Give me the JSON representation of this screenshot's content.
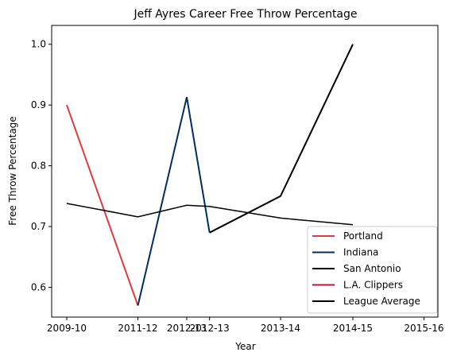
{
  "chart_data": {
    "type": "line",
    "title": "Jeff Ayres Career Free Throw Percentage",
    "xlabel": "Year",
    "ylabel": "Free Throw Percentage",
    "categories": [
      "2009-10",
      "2011-12",
      "2012-13",
      "2012-13",
      "2013-14",
      "2014-15",
      "2015-16"
    ],
    "x_tick_positions": [
      0,
      1,
      2,
      3,
      4,
      5,
      6
    ],
    "x_tick_values": [
      0,
      1.02,
      1.8,
      2.6,
      3.3,
      4.02,
      4.6
    ],
    "x_ticks": [
      "2009-10",
      "2011-12",
      "2012-13",
      "2012-13",
      "2013-14",
      "2014-15",
      "2015-16"
    ],
    "ylim": [
      0.551,
      1.031
    ],
    "yticks": [
      0.6,
      0.7,
      0.8,
      0.9,
      1.0
    ],
    "ytick_labels": [
      "0.6",
      "0.7",
      "0.8",
      "0.9",
      "1.0"
    ],
    "series": [
      {
        "name": "Portland",
        "color": "#e03a3e",
        "width": 2,
        "points": [
          {
            "x": 0,
            "y": 0.9
          },
          {
            "x": 1,
            "y": 0.57
          }
        ]
      },
      {
        "name": "Indiana",
        "color": "#002d62",
        "width": 2,
        "points": [
          {
            "x": 1,
            "y": 0.57
          },
          {
            "x": 2,
            "y": 0.913
          },
          {
            "x": 3,
            "y": 0.69
          }
        ]
      },
      {
        "name": "San Antonio",
        "color": "#000000",
        "width": 2,
        "points": [
          {
            "x": 3,
            "y": 0.69
          },
          {
            "x": 4,
            "y": 0.75
          },
          {
            "x": 5,
            "y": 1.0
          }
        ]
      },
      {
        "name": "L.A. Clippers",
        "color": "#c8102e",
        "width": 2,
        "points": []
      },
      {
        "name": "League Average",
        "color": "#000000",
        "width": 1.5,
        "points": [
          {
            "x": 0,
            "y": 0.738
          },
          {
            "x": 1,
            "y": 0.716
          },
          {
            "x": 2,
            "y": 0.735
          },
          {
            "x": 3,
            "y": 0.733
          },
          {
            "x": 4,
            "y": 0.714
          },
          {
            "x": 5,
            "y": 0.703
          }
        ]
      }
    ],
    "legend_position": "lower right",
    "grid": false
  }
}
